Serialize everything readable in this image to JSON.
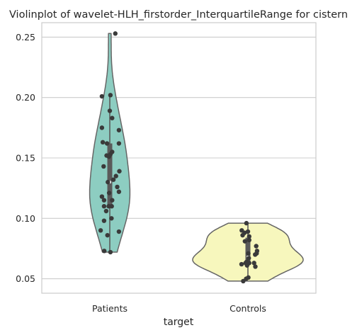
{
  "chart_data": {
    "type": "violin",
    "title": "Violinplot of wavelet-HLH_firstorder_InterquartileRange for cistern",
    "xlabel": "target",
    "ylabel": "",
    "ylim": [
      0.038,
      0.262
    ],
    "yticks": [
      0.05,
      0.1,
      0.15,
      0.2,
      0.25
    ],
    "ytick_labels": [
      "0.05",
      "0.10",
      "0.15",
      "0.20",
      "0.25"
    ],
    "grid": true,
    "categories": [
      "Patients",
      "Controls"
    ],
    "series": [
      {
        "category": "Patients",
        "color": "#8dcdc1",
        "range": [
          0.072,
          0.253
        ],
        "quartiles": [
          0.11,
          0.13,
          0.162
        ],
        "whiskers": [
          0.072,
          0.202
        ],
        "points": [
          {
            "x_jitter": 0.26,
            "y": 0.253
          },
          {
            "x_jitter": -0.37,
            "y": 0.201
          },
          {
            "x_jitter": 0.03,
            "y": 0.202
          },
          {
            "x_jitter": 0.0,
            "y": 0.189
          },
          {
            "x_jitter": 0.11,
            "y": 0.183
          },
          {
            "x_jitter": -0.37,
            "y": 0.175
          },
          {
            "x_jitter": 0.43,
            "y": 0.173
          },
          {
            "x_jitter": -0.33,
            "y": 0.163
          },
          {
            "x_jitter": 0.43,
            "y": 0.162
          },
          {
            "x_jitter": -0.13,
            "y": 0.162
          },
          {
            "x_jitter": 0.11,
            "y": 0.155
          },
          {
            "x_jitter": 0.03,
            "y": 0.153
          },
          {
            "x_jitter": -0.15,
            "y": 0.152
          },
          {
            "x_jitter": -0.04,
            "y": 0.151
          },
          {
            "x_jitter": -0.29,
            "y": 0.143
          },
          {
            "x_jitter": 0.45,
            "y": 0.139
          },
          {
            "x_jitter": 0.29,
            "y": 0.135
          },
          {
            "x_jitter": 0.17,
            "y": 0.132
          },
          {
            "x_jitter": -0.09,
            "y": 0.13
          },
          {
            "x_jitter": 0.35,
            "y": 0.126
          },
          {
            "x_jitter": 0.43,
            "y": 0.122
          },
          {
            "x_jitter": -0.03,
            "y": 0.121
          },
          {
            "x_jitter": -0.37,
            "y": 0.118
          },
          {
            "x_jitter": -0.27,
            "y": 0.115
          },
          {
            "x_jitter": 0.11,
            "y": 0.115
          },
          {
            "x_jitter": -0.27,
            "y": 0.11
          },
          {
            "x_jitter": -0.05,
            "y": 0.11
          },
          {
            "x_jitter": 0.09,
            "y": 0.11
          },
          {
            "x_jitter": -0.17,
            "y": 0.106
          },
          {
            "x_jitter": 0.08,
            "y": 0.1
          },
          {
            "x_jitter": -0.27,
            "y": 0.098
          },
          {
            "x_jitter": -0.43,
            "y": 0.09
          },
          {
            "x_jitter": 0.43,
            "y": 0.089
          },
          {
            "x_jitter": -0.11,
            "y": 0.086
          },
          {
            "x_jitter": -0.26,
            "y": 0.073
          },
          {
            "x_jitter": 0.03,
            "y": 0.072
          }
        ]
      },
      {
        "category": "Controls",
        "color": "#f7f7bd",
        "range": [
          0.048,
          0.096
        ],
        "quartiles": [
          0.062,
          0.068,
          0.084
        ],
        "whiskers": [
          0.05,
          0.096
        ],
        "points": [
          {
            "x_jitter": -0.07,
            "y": 0.096
          },
          {
            "x_jitter": -0.29,
            "y": 0.09
          },
          {
            "x_jitter": -0.16,
            "y": 0.088
          },
          {
            "x_jitter": 0.0,
            "y": 0.089
          },
          {
            "x_jitter": -0.25,
            "y": 0.086
          },
          {
            "x_jitter": 0.06,
            "y": 0.085
          },
          {
            "x_jitter": 0.06,
            "y": 0.082
          },
          {
            "x_jitter": -0.14,
            "y": 0.081
          },
          {
            "x_jitter": 0.39,
            "y": 0.077
          },
          {
            "x_jitter": 0.43,
            "y": 0.073
          },
          {
            "x_jitter": 0.41,
            "y": 0.071
          },
          {
            "x_jitter": 0.02,
            "y": 0.071
          },
          {
            "x_jitter": 0.34,
            "y": 0.07
          },
          {
            "x_jitter": 0.04,
            "y": 0.067
          },
          {
            "x_jitter": -0.06,
            "y": 0.064
          },
          {
            "x_jitter": 0.06,
            "y": 0.063
          },
          {
            "x_jitter": -0.11,
            "y": 0.063
          },
          {
            "x_jitter": 0.29,
            "y": 0.063
          },
          {
            "x_jitter": -0.3,
            "y": 0.062
          },
          {
            "x_jitter": -0.04,
            "y": 0.061
          },
          {
            "x_jitter": 0.35,
            "y": 0.06
          },
          {
            "x_jitter": -0.08,
            "y": 0.05
          },
          {
            "x_jitter": 0.02,
            "y": 0.051
          },
          {
            "x_jitter": -0.22,
            "y": 0.048
          }
        ]
      }
    ]
  },
  "colors": {
    "outline": "#666666",
    "box": "#5a5a5a",
    "median": "#ffffff",
    "point": "#3a3a3a",
    "grid": "#cccccc",
    "frame": "#cccccc"
  }
}
